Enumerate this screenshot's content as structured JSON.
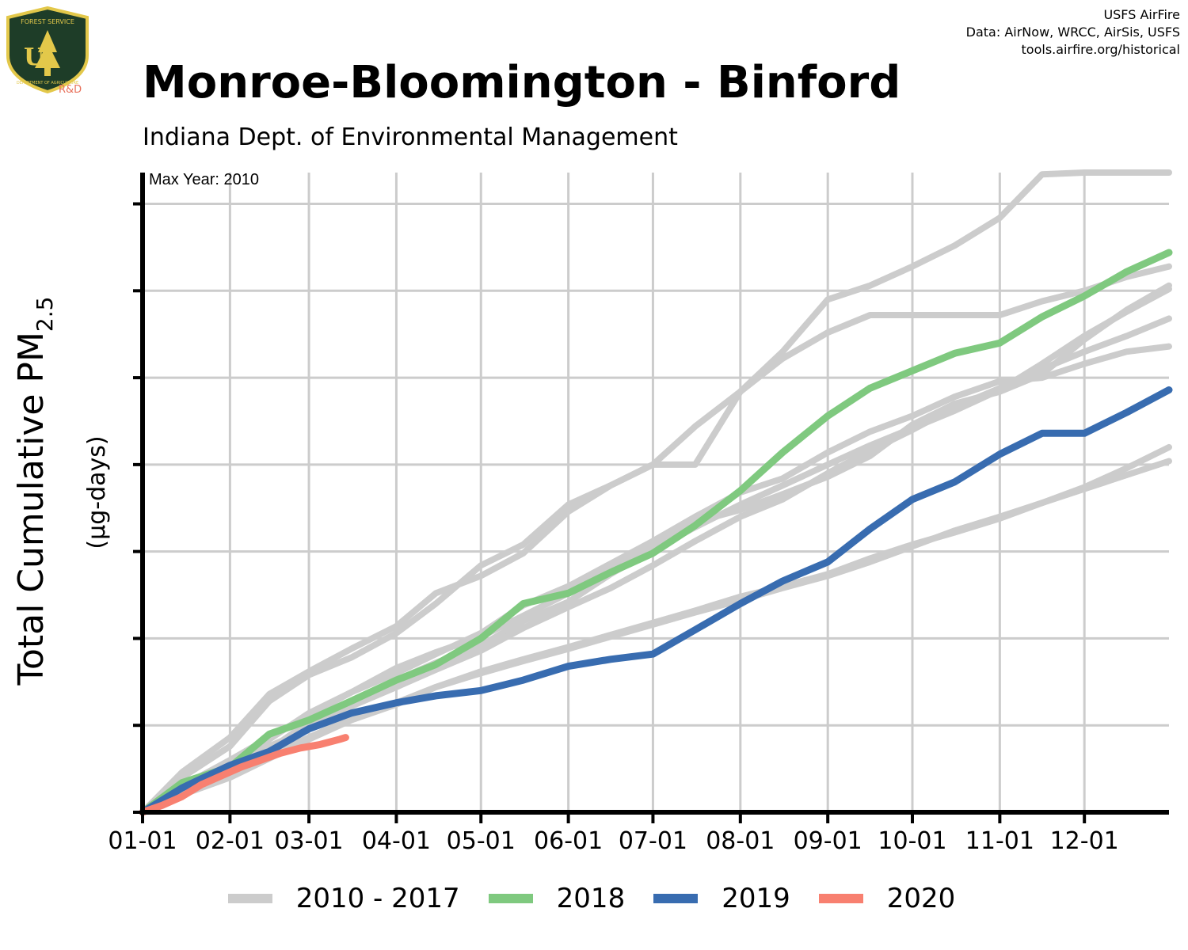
{
  "header": {
    "title": "Monroe-Bloomington - Binford",
    "subtitle": "Indiana Dept. of Environmental Management"
  },
  "credits": {
    "line1": "USFS AirFire",
    "line2": "Data: AirNow, WRCC, AirSis, USFS",
    "line3": "tools.airfire.org/historical"
  },
  "logo": {
    "top_text": "FOREST SERVICE",
    "letters": "U S",
    "bottom_text": "DEPARTMENT OF AGRICULTURE",
    "rd": "R&D"
  },
  "colors": {
    "historic": "#cccccc",
    "y2018": "#7fc97f",
    "y2019": "#386cb0",
    "y2020": "#f88070",
    "grid": "#cccccc",
    "axis": "#000000"
  },
  "chart_data": {
    "type": "line",
    "title": "Monroe-Bloomington - Binford",
    "ylabel_main": "Total Cumulative PM",
    "ylabel_sub": "2.5",
    "ylabel_units": "(µg-days)",
    "annotation": "Max Year: 2010",
    "x_unit": "day of year",
    "xlim": [
      1,
      365
    ],
    "ylim": [
      0,
      3680
    ],
    "y_ticks": [
      0,
      500,
      1000,
      1500,
      2000,
      2500,
      3000,
      3500
    ],
    "y_tick_labels_shown": false,
    "x_ticks": [
      1,
      32,
      60,
      91,
      121,
      152,
      182,
      213,
      244,
      274,
      305,
      335
    ],
    "x_tick_labels": [
      "01-01",
      "02-01",
      "03-01",
      "04-01",
      "05-01",
      "06-01",
      "07-01",
      "08-01",
      "09-01",
      "10-01",
      "11-01",
      "12-01"
    ],
    "grid": true,
    "legend_position": "bottom",
    "legend": [
      "2010 - 2017",
      "2018",
      "2019",
      "2020"
    ],
    "series": [
      {
        "group": "2010 - 2017",
        "x": [
          1,
          15,
          32,
          46,
          60,
          75,
          91,
          105,
          121,
          136,
          152,
          167,
          182,
          197,
          213,
          228,
          244,
          259,
          274,
          289,
          305,
          320,
          335,
          350,
          365
        ],
        "y": [
          0,
          230,
          430,
          680,
          810,
          940,
          1070,
          1260,
          1360,
          1490,
          1730,
          1880,
          2000,
          2220,
          2420,
          2650,
          2950,
          3030,
          3140,
          3260,
          3420,
          3670,
          3680,
          3680,
          3680
        ]
      },
      {
        "group": "2010 - 2017",
        "x": [
          1,
          15,
          32,
          46,
          60,
          75,
          91,
          105,
          121,
          136,
          152,
          167,
          182,
          197,
          213,
          228,
          244,
          259,
          274,
          289,
          305,
          320,
          335,
          350,
          365
        ],
        "y": [
          0,
          200,
          380,
          640,
          790,
          890,
          1030,
          1200,
          1420,
          1540,
          1770,
          1880,
          2000,
          2000,
          2420,
          2610,
          2760,
          2860,
          2860,
          2860,
          2860,
          2940,
          3000,
          3080,
          3140
        ]
      },
      {
        "group": "2010 - 2017",
        "x": [
          1,
          15,
          32,
          46,
          60,
          75,
          91,
          105,
          121,
          136,
          152,
          167,
          182,
          197,
          213,
          228,
          244,
          259,
          274,
          289,
          305,
          320,
          335,
          350,
          365
        ],
        "y": [
          0,
          130,
          260,
          420,
          570,
          690,
          830,
          920,
          1010,
          1130,
          1260,
          1420,
          1520,
          1670,
          1740,
          1830,
          1930,
          2050,
          2230,
          2350,
          2420,
          2520,
          2720,
          2890,
          3030
        ]
      },
      {
        "group": "2010 - 2017",
        "x": [
          1,
          15,
          32,
          46,
          60,
          75,
          91,
          105,
          121,
          136,
          152,
          167,
          182,
          197,
          213,
          228,
          244,
          259,
          274,
          289,
          305,
          320,
          335,
          350,
          365
        ],
        "y": [
          0,
          110,
          230,
          360,
          520,
          640,
          760,
          860,
          960,
          1100,
          1210,
          1370,
          1510,
          1640,
          1770,
          1880,
          2000,
          2110,
          2210,
          2310,
          2430,
          2580,
          2740,
          2880,
          3010
        ]
      },
      {
        "group": "2010 - 2017",
        "x": [
          1,
          15,
          32,
          46,
          60,
          75,
          91,
          105,
          121,
          136,
          152,
          167,
          182,
          197,
          213,
          228,
          244,
          259,
          274,
          289,
          305,
          320,
          335,
          350,
          365
        ],
        "y": [
          0,
          150,
          300,
          430,
          560,
          690,
          800,
          910,
          1030,
          1190,
          1300,
          1430,
          1560,
          1700,
          1840,
          1920,
          2070,
          2190,
          2280,
          2390,
          2480,
          2500,
          2580,
          2650,
          2680
        ]
      },
      {
        "group": "2010 - 2017",
        "x": [
          1,
          15,
          32,
          46,
          60,
          75,
          91,
          105,
          121,
          136,
          152,
          167,
          182,
          197,
          213,
          228,
          244,
          259,
          274,
          289,
          305,
          320,
          335,
          350,
          365
        ],
        "y": [
          0,
          140,
          270,
          380,
          480,
          610,
          720,
          820,
          930,
          1060,
          1180,
          1290,
          1420,
          1560,
          1700,
          1800,
          1950,
          2080,
          2200,
          2330,
          2440,
          2550,
          2650,
          2740,
          2840
        ]
      },
      {
        "group": "2010 - 2017",
        "x": [
          1,
          15,
          32,
          46,
          60,
          75,
          91,
          105,
          121,
          136,
          152,
          167,
          182,
          197,
          213,
          228,
          244,
          259,
          274,
          289,
          305,
          320,
          335,
          350,
          365
        ],
        "y": [
          0,
          110,
          210,
          330,
          430,
          540,
          630,
          720,
          810,
          880,
          950,
          1020,
          1090,
          1160,
          1240,
          1300,
          1370,
          1460,
          1540,
          1610,
          1690,
          1780,
          1870,
          1980,
          2100
        ]
      },
      {
        "group": "2010 - 2017",
        "x": [
          1,
          15,
          32,
          46,
          60,
          75,
          91,
          105,
          121,
          136,
          152,
          167,
          182,
          197,
          213,
          228,
          244,
          259,
          274,
          289,
          305,
          320,
          335,
          350,
          365
        ],
        "y": [
          0,
          100,
          200,
          310,
          420,
          530,
          620,
          720,
          800,
          870,
          940,
          1010,
          1080,
          1150,
          1220,
          1290,
          1360,
          1440,
          1530,
          1620,
          1700,
          1780,
          1860,
          1940,
          2020
        ]
      },
      {
        "group": "2018",
        "x": [
          1,
          15,
          32,
          46,
          60,
          75,
          91,
          105,
          121,
          136,
          152,
          167,
          182,
          197,
          213,
          228,
          244,
          259,
          274,
          289,
          305,
          320,
          335,
          350,
          365
        ],
        "y": [
          0,
          170,
          260,
          450,
          530,
          640,
          760,
          850,
          1000,
          1200,
          1260,
          1380,
          1490,
          1650,
          1850,
          2070,
          2280,
          2440,
          2540,
          2640,
          2700,
          2850,
          2970,
          3110,
          3220
        ]
      },
      {
        "group": "2019",
        "x": [
          1,
          15,
          32,
          46,
          60,
          75,
          91,
          105,
          121,
          136,
          152,
          167,
          182,
          197,
          213,
          228,
          244,
          259,
          274,
          289,
          305,
          320,
          335,
          350,
          365
        ],
        "y": [
          0,
          140,
          270,
          350,
          480,
          570,
          630,
          670,
          700,
          760,
          840,
          880,
          910,
          1050,
          1200,
          1330,
          1440,
          1630,
          1800,
          1900,
          2060,
          2180,
          2180,
          2300,
          2430
        ]
      },
      {
        "group": "2020",
        "x": [
          1,
          8,
          15,
          22,
          29,
          36,
          43,
          50,
          57,
          64,
          71,
          73
        ],
        "y": [
          0,
          40,
          90,
          160,
          210,
          260,
          300,
          340,
          370,
          390,
          420,
          430
        ]
      }
    ]
  }
}
